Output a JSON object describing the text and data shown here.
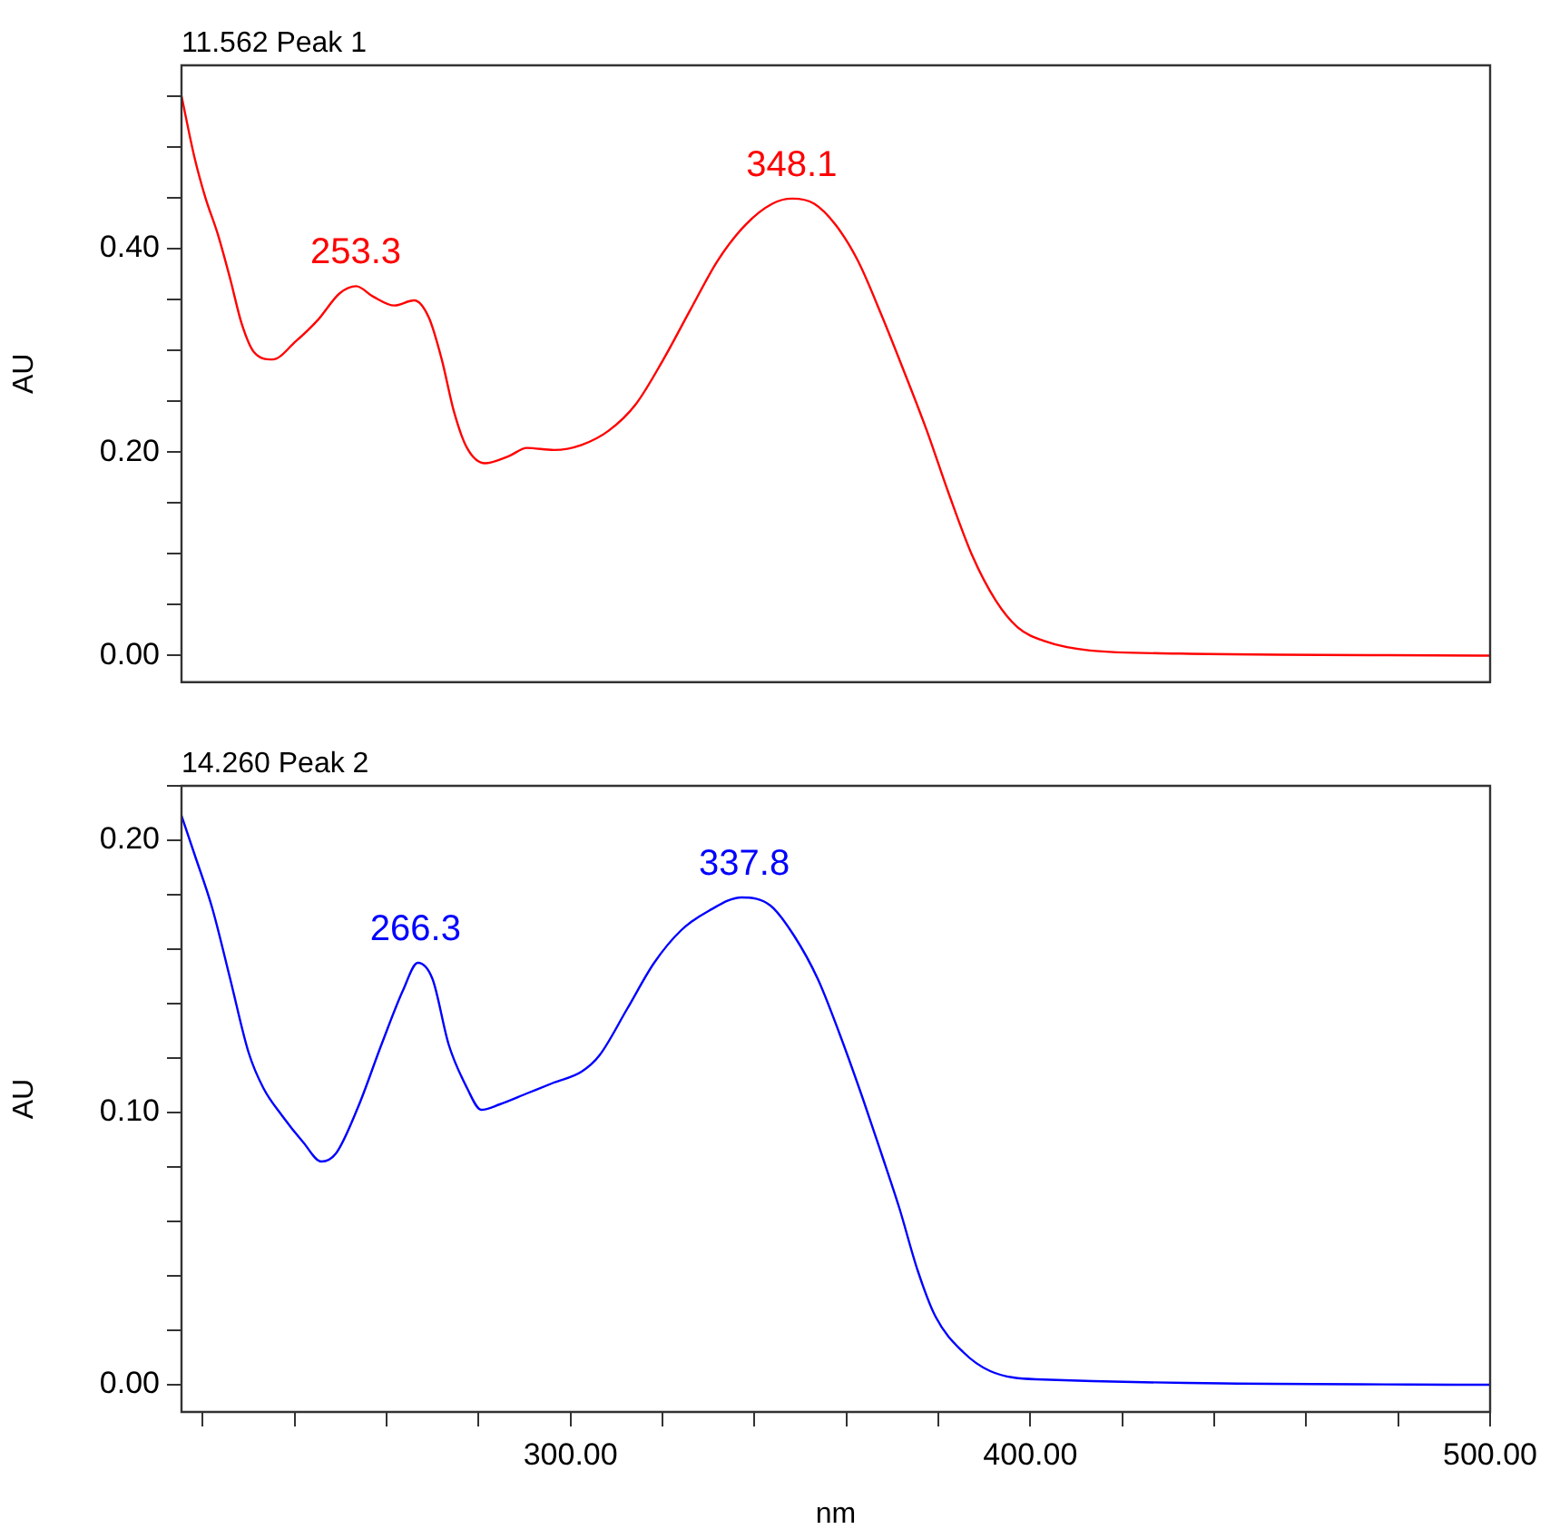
{
  "chart_data": [
    {
      "type": "line",
      "title": "11.562 Peak 1",
      "ylabel": "AU",
      "marker": "none",
      "tick_labels": "y",
      "x": [
        215.4,
        218.2,
        220.6,
        223.3,
        226,
        228.5,
        231.2,
        235.2,
        240.3,
        245.1,
        249.8,
        253.4,
        257,
        261.7,
        266,
        269.2,
        272,
        274.7,
        277.5,
        281.4,
        286.6,
        290.5,
        296.4,
        302.4,
        308.3,
        314.2,
        320.2,
        326.1,
        332,
        338,
        343.9,
        348.2,
        353,
        357.7,
        362.5,
        367.6,
        372.3,
        377.5,
        382.2,
        387.4,
        392.5,
        397.2,
        403.2,
        413,
        432.8,
        500
      ],
      "series": [
        {
          "color": "#ff0000",
          "values": [
            0.55,
            0.49,
            0.45,
            0.414,
            0.37,
            0.326,
            0.298,
            0.291,
            0.309,
            0.33,
            0.356,
            0.363,
            0.353,
            0.344,
            0.349,
            0.332,
            0.291,
            0.239,
            0.204,
            0.189,
            0.196,
            0.204,
            0.202,
            0.207,
            0.221,
            0.247,
            0.291,
            0.34,
            0.388,
            0.423,
            0.444,
            0.449,
            0.444,
            0.423,
            0.388,
            0.335,
            0.282,
            0.221,
            0.16,
            0.098,
            0.054,
            0.028,
            0.014,
            0.005,
            0.002,
            0
          ]
        }
      ],
      "xlim": [
        215.4,
        500
      ],
      "ylim": [
        -0.026,
        0.58
      ],
      "yticks": [
        {
          "value": 0,
          "label": "0.00"
        },
        {
          "value": 0.05,
          "label": null
        },
        {
          "value": 0.1,
          "label": null
        },
        {
          "value": 0.15,
          "label": null
        },
        {
          "value": 0.2,
          "label": "0.20"
        },
        {
          "value": 0.25,
          "label": null
        },
        {
          "value": 0.3,
          "label": null
        },
        {
          "value": 0.35,
          "label": null
        },
        {
          "value": 0.4,
          "label": "0.40"
        },
        {
          "value": 0.45,
          "label": null
        },
        {
          "value": 0.5,
          "label": null
        },
        {
          "value": 0.55,
          "label": null
        }
      ],
      "annotations": [
        {
          "text": "253.3",
          "x": 253.3,
          "y": 0.363
        },
        {
          "text": "348.1",
          "x": 348.1,
          "y": 0.449
        }
      ]
    },
    {
      "type": "line",
      "title": "14.260 Peak 2",
      "ylabel": "AU",
      "xlabel": "nm",
      "marker": "none",
      "x": [
        215.4,
        218.2,
        222.1,
        226,
        230,
        233.2,
        237.2,
        241.9,
        245.8,
        249,
        253.8,
        258.9,
        263.6,
        266.8,
        270,
        273.5,
        277.5,
        280.6,
        284.6,
        290.5,
        296.4,
        302.4,
        306.3,
        312.3,
        318.2,
        324.1,
        330,
        337.2,
        343.5,
        348.6,
        353.8,
        358.5,
        363.6,
        367.6,
        371.5,
        375.5,
        379.4,
        385.4,
        391.3,
        401.2,
        500
      ],
      "series": [
        {
          "color": "#0000ff",
          "values": [
            0.209,
            0.195,
            0.175,
            0.149,
            0.122,
            0.109,
            0.099,
            0.089,
            0.082,
            0.085,
            0.102,
            0.125,
            0.145,
            0.155,
            0.149,
            0.125,
            0.109,
            0.101,
            0.103,
            0.107,
            0.111,
            0.115,
            0.121,
            0.138,
            0.155,
            0.167,
            0.174,
            0.179,
            0.176,
            0.165,
            0.149,
            0.129,
            0.105,
            0.085,
            0.065,
            0.042,
            0.025,
            0.012,
            0.005,
            0.002,
            0
          ]
        }
      ],
      "xlim": [
        215.4,
        500
      ],
      "ylim": [
        -0.01,
        0.22
      ],
      "xticks": [
        {
          "value": 220,
          "label": null
        },
        {
          "value": 240,
          "label": null
        },
        {
          "value": 260,
          "label": null
        },
        {
          "value": 280,
          "label": null
        },
        {
          "value": 300,
          "label": "300.00"
        },
        {
          "value": 320,
          "label": null
        },
        {
          "value": 340,
          "label": null
        },
        {
          "value": 360,
          "label": null
        },
        {
          "value": 380,
          "label": null
        },
        {
          "value": 400,
          "label": "400.00"
        },
        {
          "value": 420,
          "label": null
        },
        {
          "value": 440,
          "label": null
        },
        {
          "value": 460,
          "label": null
        },
        {
          "value": 480,
          "label": null
        },
        {
          "value": 500,
          "label": "500.00"
        }
      ],
      "yticks": [
        {
          "value": 0,
          "label": "0.00"
        },
        {
          "value": 0.02,
          "label": null
        },
        {
          "value": 0.04,
          "label": null
        },
        {
          "value": 0.06,
          "label": null
        },
        {
          "value": 0.08,
          "label": null
        },
        {
          "value": 0.1,
          "label": "0.10"
        },
        {
          "value": 0.12,
          "label": null
        },
        {
          "value": 0.14,
          "label": null
        },
        {
          "value": 0.16,
          "label": null
        },
        {
          "value": 0.18,
          "label": null
        },
        {
          "value": 0.2,
          "label": "0.20"
        },
        {
          "value": 0.22,
          "label": null
        }
      ],
      "annotations": [
        {
          "text": "266.3",
          "x": 266.3,
          "y": 0.155
        },
        {
          "text": "337.8",
          "x": 337.8,
          "y": 0.179
        }
      ]
    }
  ]
}
